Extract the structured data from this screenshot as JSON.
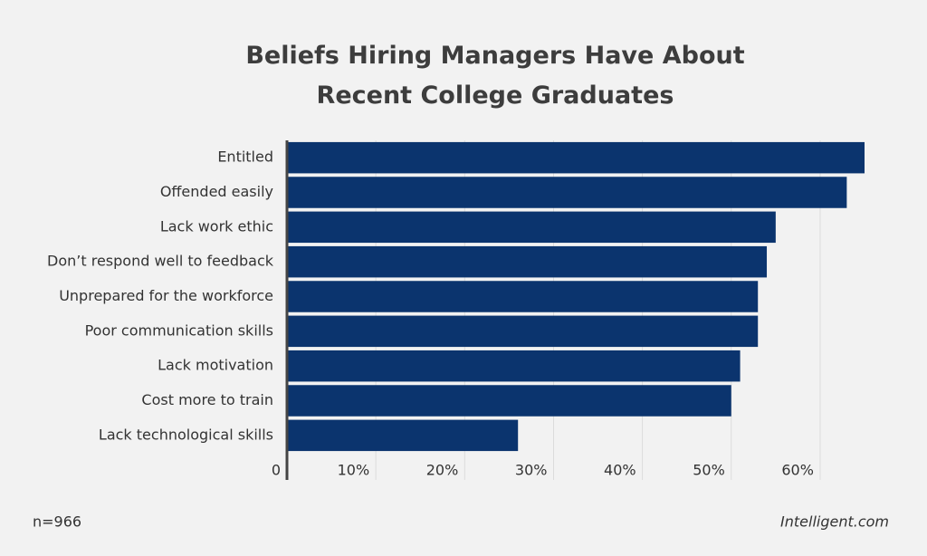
{
  "chart_data": {
    "type": "hbar",
    "title": "Beliefs Hiring Managers Have About Recent College Graduates",
    "categories": [
      "Entitled",
      "Offended easily",
      "Lack work ethic",
      "Don’t respond well to feedback",
      "Unprepared for the workforce",
      "Poor communication skills",
      "Lack motivation",
      "Cost more to train",
      "Lack technological skills"
    ],
    "values": [
      65,
      63,
      55,
      54,
      53,
      53,
      51,
      50,
      26
    ],
    "color": "#0b346e",
    "xlim": [
      0,
      65
    ],
    "xticks": [
      0,
      {
        "value": 10,
        "label": "10%"
      },
      {
        "value": 20,
        "label": "20%"
      },
      {
        "value": 30,
        "label": "30%"
      },
      {
        "value": 40,
        "label": "40%"
      },
      {
        "value": 50,
        "label": "50%"
      },
      {
        "value": 60,
        "label": "60%"
      }
    ],
    "grid": true,
    "note": "n=966",
    "source": "Intelligent.com"
  }
}
